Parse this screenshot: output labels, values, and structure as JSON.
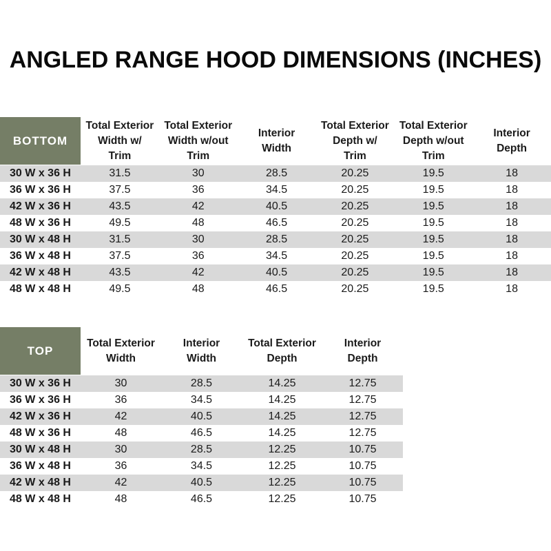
{
  "page": {
    "title": "ANGLED RANGE HOOD DIMENSIONS (INCHES)"
  },
  "colors": {
    "header_green": "#757E66",
    "stripe_gray": "#D9D9D9",
    "text": "#1F1F1F"
  },
  "bottom_table": {
    "corner_label": "BOTTOM",
    "columns": [
      "Total Exterior\nWidth w/\nTrim",
      "Total Exterior\nWidth w/out\nTrim",
      "Interior\nWidth",
      "Total Exterior\nDepth w/\nTrim",
      "Total Exterior\nDepth w/out\nTrim",
      "Interior\nDepth"
    ],
    "rows": [
      {
        "label": "30 W x 36 H",
        "values": [
          "31.5",
          "30",
          "28.5",
          "20.25",
          "19.5",
          "18"
        ]
      },
      {
        "label": "36 W x 36 H",
        "values": [
          "37.5",
          "36",
          "34.5",
          "20.25",
          "19.5",
          "18"
        ]
      },
      {
        "label": "42 W x 36 H",
        "values": [
          "43.5",
          "42",
          "40.5",
          "20.25",
          "19.5",
          "18"
        ]
      },
      {
        "label": "48 W x 36 H",
        "values": [
          "49.5",
          "48",
          "46.5",
          "20.25",
          "19.5",
          "18"
        ]
      },
      {
        "label": "30 W x 48 H",
        "values": [
          "31.5",
          "30",
          "28.5",
          "20.25",
          "19.5",
          "18"
        ]
      },
      {
        "label": "36 W x 48 H",
        "values": [
          "37.5",
          "36",
          "34.5",
          "20.25",
          "19.5",
          "18"
        ]
      },
      {
        "label": "42 W x 48 H",
        "values": [
          "43.5",
          "42",
          "40.5",
          "20.25",
          "19.5",
          "18"
        ]
      },
      {
        "label": "48 W x 48 H",
        "values": [
          "49.5",
          "48",
          "46.5",
          "20.25",
          "19.5",
          "18"
        ]
      }
    ]
  },
  "top_table": {
    "corner_label": "TOP",
    "columns": [
      "Total Exterior\nWidth",
      "Interior\nWidth",
      "Total Exterior\nDepth",
      "Interior\nDepth"
    ],
    "rows": [
      {
        "label": "30 W x 36 H",
        "values": [
          "30",
          "28.5",
          "14.25",
          "12.75"
        ]
      },
      {
        "label": "36 W x 36 H",
        "values": [
          "36",
          "34.5",
          "14.25",
          "12.75"
        ]
      },
      {
        "label": "42 W x 36 H",
        "values": [
          "42",
          "40.5",
          "14.25",
          "12.75"
        ]
      },
      {
        "label": "48 W x 36 H",
        "values": [
          "48",
          "46.5",
          "14.25",
          "12.75"
        ]
      },
      {
        "label": "30 W x 48 H",
        "values": [
          "30",
          "28.5",
          "12.25",
          "10.75"
        ]
      },
      {
        "label": "36 W x 48 H",
        "values": [
          "36",
          "34.5",
          "12.25",
          "10.75"
        ]
      },
      {
        "label": "42 W x 48 H",
        "values": [
          "42",
          "40.5",
          "12.25",
          "10.75"
        ]
      },
      {
        "label": "48 W x 48 H",
        "values": [
          "48",
          "46.5",
          "12.25",
          "10.75"
        ]
      }
    ]
  }
}
